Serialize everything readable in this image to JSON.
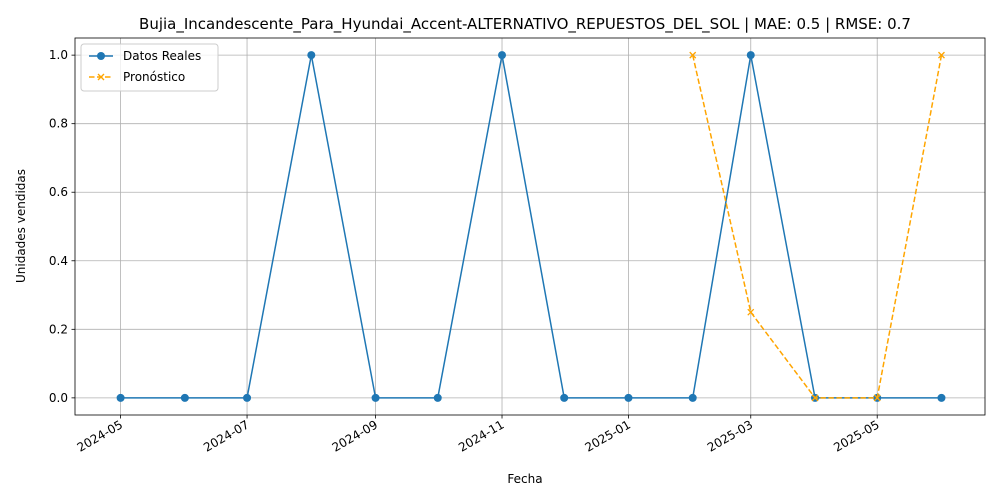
{
  "chart_data": {
    "type": "line",
    "title": "Bujia_Incandescente_Para_Hyundai_Accent-ALTERNATIVO_REPUESTOS_DEL_SOL | MAE: 0.5 | RMSE: 0.7",
    "xlabel": "Fecha",
    "ylabel": "Unidades vendidas",
    "ylim": [
      -0.05,
      1.05
    ],
    "xlim": [
      "2024-04-09",
      "2025-06-22"
    ],
    "grid": true,
    "legend_position": "upper-left",
    "x_ticks": [
      "2024-05",
      "2024-07",
      "2024-09",
      "2024-11",
      "2025-01",
      "2025-03",
      "2025-05"
    ],
    "y_ticks": [
      "0.0",
      "0.2",
      "0.4",
      "0.6",
      "0.8",
      "1.0"
    ],
    "series": [
      {
        "name": "Datos Reales",
        "color": "#1f77b4",
        "style": "solid",
        "marker": "circle",
        "x": [
          "2024-05-01",
          "2024-06-01",
          "2024-07-01",
          "2024-08-01",
          "2024-09-01",
          "2024-10-01",
          "2024-11-01",
          "2024-12-01",
          "2025-01-01",
          "2025-02-01",
          "2025-03-01",
          "2025-04-01",
          "2025-05-01",
          "2025-06-01"
        ],
        "values": [
          0,
          0,
          0,
          1,
          0,
          0,
          1,
          0,
          0,
          0,
          1,
          0,
          0,
          0
        ]
      },
      {
        "name": "Pronóstico",
        "color": "#ffa500",
        "style": "dashed",
        "marker": "x",
        "x": [
          "2025-02-01",
          "2025-03-01",
          "2025-04-01",
          "2025-05-01",
          "2025-06-01"
        ],
        "values": [
          1.0,
          0.25,
          0.0,
          0.0,
          1.0
        ]
      }
    ]
  }
}
